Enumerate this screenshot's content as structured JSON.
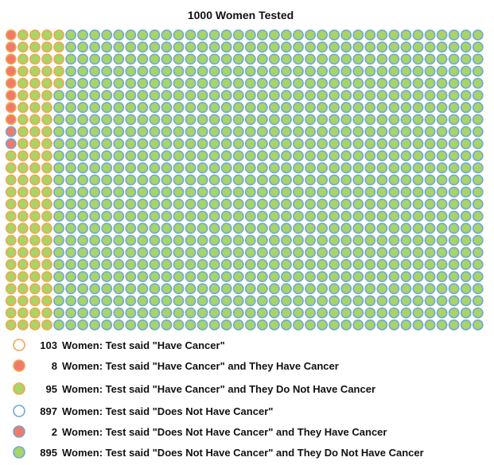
{
  "title": "1000 Women Tested",
  "colors": {
    "orange_edge": "#f5a54a",
    "blue_edge": "#6fa8d6",
    "red_fill": "#f07a6a",
    "green_fill": "#a8d468",
    "empty_fill": "#ffffff"
  },
  "chart_data": {
    "type": "waffle",
    "title": "1000 Women Tested",
    "total": 1000,
    "grid": {
      "columns": 40,
      "rows": 25,
      "fill_order": "column-major"
    },
    "groups": [
      {
        "label": "Women: Test said \"Have Cancer\" and They Have Cancer",
        "count": 8,
        "edge": "orange",
        "fill": "red"
      },
      {
        "label": "Women: Test said \"Does Not Have Cancer\" and They Have Cancer",
        "count": 2,
        "edge": "blue",
        "fill": "red"
      },
      {
        "label": "Women: Test said \"Have Cancer\" and They Do Not Have Cancer",
        "count": 95,
        "edge": "orange",
        "fill": "green"
      },
      {
        "label": "Women: Test said \"Does Not Have Cancer\" and They Do Not Have Cancer",
        "count": 895,
        "edge": "blue",
        "fill": "green"
      }
    ]
  },
  "legend": [
    {
      "count": "103",
      "text": "Women: Test said \"Have Cancer\"",
      "edge": "orange",
      "fill": "empty"
    },
    {
      "count": "8",
      "text": "Women: Test said \"Have Cancer\" and They Have Cancer",
      "edge": "orange",
      "fill": "red"
    },
    {
      "count": "95",
      "text": "Women: Test said \"Have Cancer\" and They Do Not Have Cancer",
      "edge": "orange",
      "fill": "green"
    },
    {
      "count": "897",
      "text": "Women: Test said \"Does Not Have Cancer\"",
      "edge": "blue",
      "fill": "empty"
    },
    {
      "count": "2",
      "text": "Women: Test said \"Does Not Have Cancer\" and They Have Cancer",
      "edge": "blue",
      "fill": "red"
    },
    {
      "count": "895",
      "text": "Women: Test said \"Does Not Have Cancer\" and They Do Not Have Cancer",
      "edge": "blue",
      "fill": "green"
    }
  ]
}
